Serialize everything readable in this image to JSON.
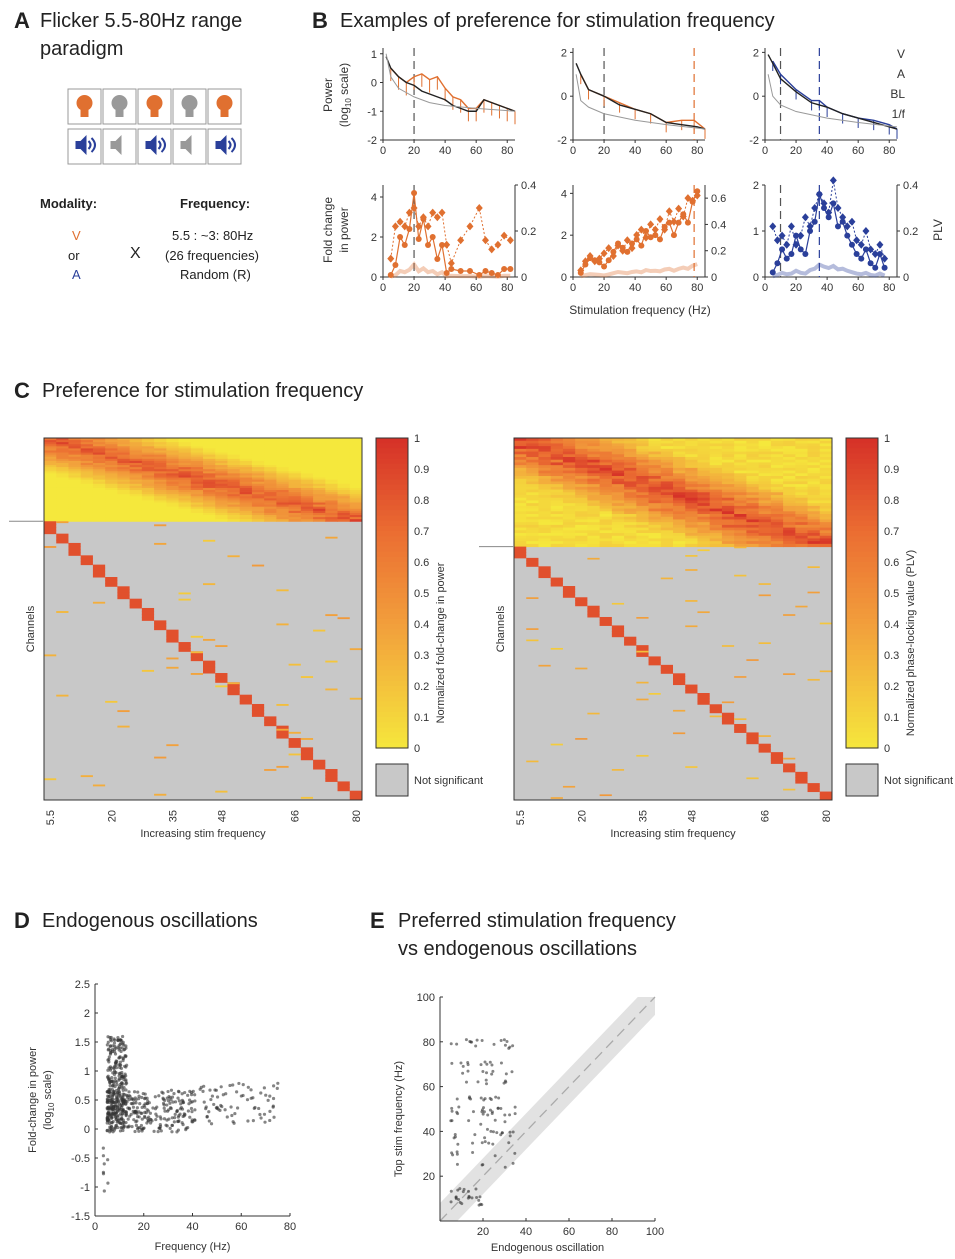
{
  "panelA": {
    "letter": "A",
    "title_line1": "Flicker 5.5-80Hz range",
    "title_line2": "paradigm",
    "modality_header": "Modality:",
    "modality_v": "V",
    "modality_or": "or",
    "modality_a": "A",
    "times": "X",
    "frequency_header": "Frequency:",
    "freq_line1": "5.5 : ~3: 80Hz",
    "freq_line2": "(26 frequencies)",
    "freq_line3": "Random (R)",
    "icons": [
      "bulb-on-icon",
      "bulb-off-icon",
      "bulb-on-icon",
      "bulb-off-icon",
      "bulb-on-icon",
      "speaker-on-icon",
      "speaker-off-icon",
      "speaker-on-icon",
      "speaker-off-icon",
      "speaker-on-icon"
    ]
  },
  "panelB": {
    "letter": "B",
    "title": "Examples of preference for stimulation frequency",
    "top_ylabel1": "Power",
    "top_ylabel2": "(log",
    "top_ylabel_sub": "10",
    "top_ylabel3": " scale)",
    "bottom_ylabel1": "Fold change",
    "bottom_ylabel2": "in power",
    "right_ylabel": "PLV",
    "xlabel": "Stimulation frequency (Hz)",
    "legend": [
      "V",
      "A",
      "BL",
      "1/f"
    ],
    "x_ticks": [
      "0",
      "20",
      "40",
      "60",
      "80"
    ],
    "top_y_ticks_a": [
      "1",
      "0",
      "-1",
      "-2"
    ],
    "top_y_ticks_b": [
      "2",
      "0",
      "-2"
    ],
    "top_y_ticks_c": [
      "2",
      "0",
      "-2"
    ],
    "bot_y_ticks_a": [
      "4",
      "2",
      "0"
    ],
    "bot_y2_ticks_a": [
      "0.4",
      "0.2",
      "0"
    ],
    "bot_y_ticks_b": [
      "4",
      "2",
      "0"
    ],
    "bot_y2_ticks_b": [
      "0.6",
      "0.4",
      "0.2",
      "0"
    ],
    "bot_y_ticks_c": [
      "2",
      "1",
      "0"
    ],
    "bot_y2_ticks_c": [
      "0.4",
      "0.2",
      "0"
    ]
  },
  "panelC": {
    "letter": "C",
    "title": "Preference for stimulation frequency",
    "ylabel": "Channels",
    "xlabel": "Increasing stim frequency",
    "x_ticks": [
      "5.5",
      "20",
      "35",
      "48",
      "66",
      "80"
    ],
    "cbar_ticks": [
      "1",
      "0.9",
      "0.8",
      "0.7",
      "0.6",
      "0.5",
      "0.4",
      "0.3",
      "0.2",
      "0.1",
      "0"
    ],
    "left_cbar_label": "Normalized fold-change in power",
    "right_cbar_label": "Normalized phase-locking value (PLV)",
    "not_significant": "Not significant"
  },
  "panelD": {
    "letter": "D",
    "title": "Endogenous oscillations",
    "ylabel1": "Fold-change in power",
    "ylabel2": "(log",
    "ylabel_sub": "10",
    "ylabel3": " scale)",
    "xlabel": "Frequency (Hz)",
    "x_ticks": [
      "0",
      "20",
      "40",
      "60",
      "80"
    ],
    "y_ticks": [
      "2.5",
      "2",
      "1.5",
      "1",
      "0.5",
      "0",
      "-0.5",
      "-1",
      "-1.5"
    ]
  },
  "panelE": {
    "letter": "E",
    "title_line1": "Preferred stimulation frequency",
    "title_line2": "vs endogenous oscillations",
    "ylabel": "Top stim frequency (Hz)",
    "xlabel": "Endogenous oscillation",
    "x_ticks": [
      "20",
      "40",
      "60",
      "80",
      "100"
    ],
    "y_ticks": [
      "100",
      "80",
      "60",
      "40",
      "20"
    ]
  },
  "colors": {
    "visual": "#e07030",
    "auditory": "#2a3f9a",
    "baseline": "#222222",
    "one_over_f": "#999999",
    "gray": "#cccccc",
    "ylabelE": "#c050b0"
  },
  "chart_data": [
    {
      "type": "line",
      "panel": "B-top-1",
      "xlim": [
        0,
        85
      ],
      "ylim": [
        -2,
        1.2
      ],
      "marker_x": 20,
      "series": [
        {
          "name": "V",
          "x": [
            5,
            10,
            15,
            20,
            25,
            30,
            35,
            40,
            45,
            50,
            55,
            60,
            65,
            70,
            75,
            80,
            85
          ],
          "y": [
            0.5,
            0.2,
            0.0,
            0.2,
            0.3,
            0.1,
            0.2,
            -0.2,
            -0.5,
            -0.6,
            -0.9,
            -0.9,
            -0.6,
            -0.7,
            -0.8,
            -0.9,
            -1.0
          ]
        },
        {
          "name": "BL",
          "x": [
            2,
            5,
            10,
            15,
            20,
            25,
            30,
            35,
            40,
            45,
            50,
            55,
            60,
            65,
            70,
            75,
            80,
            85
          ],
          "y": [
            0.9,
            0.5,
            0.2,
            0.0,
            -0.1,
            -0.3,
            -0.4,
            -0.5,
            -0.6,
            -0.8,
            -0.9,
            -1.0,
            -1.0,
            -0.6,
            -0.7,
            -0.8,
            -0.9,
            -1.0
          ]
        },
        {
          "name": "1/f",
          "x": [
            2,
            5,
            10,
            20,
            30,
            40,
            60,
            85
          ],
          "y": [
            1.0,
            0.2,
            -0.2,
            -0.5,
            -0.7,
            -0.8,
            -0.9,
            -1.0
          ]
        }
      ]
    },
    {
      "type": "line",
      "panel": "B-top-2",
      "xlim": [
        0,
        85
      ],
      "ylim": [
        -2,
        2.2
      ],
      "marker_x": [
        20,
        78
      ],
      "series": [
        {
          "name": "V",
          "x": [
            5,
            10,
            20,
            30,
            40,
            50,
            60,
            70,
            78,
            85
          ],
          "y": [
            1.0,
            0.3,
            0.0,
            -0.3,
            -0.6,
            -0.8,
            -1.2,
            -1.1,
            -1.1,
            -1.5
          ]
        },
        {
          "name": "BL",
          "x": [
            2,
            5,
            10,
            20,
            30,
            40,
            50,
            60,
            70,
            80,
            85
          ],
          "y": [
            1.5,
            1.0,
            0.3,
            0.0,
            -0.4,
            -0.6,
            -0.8,
            -1.2,
            -1.3,
            -1.4,
            -1.5
          ]
        },
        {
          "name": "1/f",
          "x": [
            2,
            5,
            10,
            20,
            40,
            60,
            85
          ],
          "y": [
            1.0,
            -0.2,
            -0.5,
            -0.8,
            -1.1,
            -1.3,
            -1.5
          ]
        }
      ]
    },
    {
      "type": "line",
      "panel": "B-top-3",
      "xlim": [
        0,
        85
      ],
      "ylim": [
        -2,
        2.2
      ],
      "marker_x": [
        10,
        35
      ],
      "series": [
        {
          "name": "A",
          "x": [
            5,
            10,
            20,
            30,
            35,
            40,
            50,
            60,
            70,
            80,
            85
          ],
          "y": [
            1.6,
            1.0,
            0.3,
            -0.2,
            -0.2,
            -0.5,
            -0.8,
            -1.0,
            -1.1,
            -1.3,
            -1.5
          ]
        },
        {
          "name": "BL",
          "x": [
            2,
            5,
            10,
            20,
            30,
            40,
            50,
            60,
            70,
            80,
            85
          ],
          "y": [
            1.9,
            1.5,
            0.8,
            0.2,
            -0.3,
            -0.5,
            -0.8,
            -1.0,
            -1.2,
            -1.4,
            -1.5
          ]
        },
        {
          "name": "1/f",
          "x": [
            2,
            5,
            10,
            20,
            40,
            60,
            85
          ],
          "y": [
            1.0,
            0.0,
            -0.4,
            -0.7,
            -1.0,
            -1.2,
            -1.4
          ]
        }
      ]
    },
    {
      "type": "line",
      "panel": "B-bottom-1",
      "xlim": [
        0,
        85
      ],
      "ylim": [
        0,
        4.6
      ],
      "marker_x": 20,
      "series": [
        {
          "name": "V",
          "x": [
            5,
            8,
            11,
            14,
            17,
            20,
            23,
            26,
            29,
            32,
            35,
            38,
            41,
            44,
            50,
            56,
            62,
            66,
            70,
            74,
            78,
            82
          ],
          "y": [
            0.1,
            0.6,
            2.0,
            1.6,
            2.4,
            4.2,
            1.9,
            2.9,
            1.6,
            2.0,
            0.9,
            1.6,
            0.2,
            0.4,
            0.3,
            0.3,
            0.1,
            0.3,
            0.2,
            0.1,
            0.4,
            0.4
          ]
        },
        {
          "name": "PLV",
          "x": [
            5,
            8,
            11,
            14,
            17,
            20,
            23,
            26,
            29,
            32,
            35,
            38,
            41,
            44,
            50,
            56,
            62,
            66,
            70,
            74,
            78,
            82
          ],
          "y": [
            0.08,
            0.22,
            0.24,
            0.22,
            0.28,
            0.3,
            0.22,
            0.26,
            0.22,
            0.28,
            0.26,
            0.28,
            0.14,
            0.06,
            0.16,
            0.22,
            0.3,
            0.16,
            0.12,
            0.14,
            0.18,
            0.16
          ]
        }
      ]
    },
    {
      "type": "line",
      "panel": "B-bottom-2",
      "xlim": [
        0,
        85
      ],
      "ylim": [
        0,
        4.4
      ],
      "marker_x": 78,
      "series": [
        {
          "name": "V",
          "x": [
            5,
            8,
            11,
            14,
            17,
            20,
            23,
            26,
            29,
            32,
            35,
            38,
            41,
            44,
            47,
            50,
            53,
            56,
            59,
            62,
            65,
            68,
            71,
            74,
            77,
            80
          ],
          "y": [
            0.2,
            0.6,
            0.9,
            0.8,
            0.7,
            0.5,
            0.8,
            1.2,
            1.6,
            1.4,
            1.2,
            1.6,
            1.8,
            1.5,
            2.2,
            1.9,
            2.0,
            1.8,
            2.4,
            2.6,
            2.0,
            2.6,
            3.0,
            2.6,
            3.6,
            4.1
          ]
        },
        {
          "name": "PLV",
          "x": [
            5,
            8,
            11,
            14,
            17,
            20,
            23,
            26,
            29,
            32,
            35,
            38,
            41,
            44,
            47,
            50,
            53,
            56,
            59,
            62,
            65,
            68,
            71,
            74,
            77,
            80
          ],
          "y": [
            0.05,
            0.12,
            0.16,
            0.12,
            0.14,
            0.18,
            0.22,
            0.16,
            0.24,
            0.2,
            0.28,
            0.22,
            0.32,
            0.36,
            0.3,
            0.4,
            0.36,
            0.44,
            0.36,
            0.5,
            0.42,
            0.52,
            0.46,
            0.6,
            0.58,
            0.62
          ]
        }
      ]
    },
    {
      "type": "line",
      "panel": "B-bottom-3",
      "xlim": [
        0,
        85
      ],
      "ylim": [
        0,
        2
      ],
      "marker_x": [
        10,
        35
      ],
      "series": [
        {
          "name": "A",
          "x": [
            5,
            8,
            11,
            14,
            17,
            20,
            23,
            26,
            29,
            32,
            35,
            38,
            41,
            44,
            47,
            50,
            53,
            56,
            59,
            62,
            65,
            68,
            71,
            74,
            77
          ],
          "y": [
            0.1,
            0.3,
            0.6,
            0.4,
            0.5,
            0.9,
            0.6,
            0.5,
            1.0,
            1.2,
            1.8,
            1.5,
            1.3,
            1.6,
            1.1,
            1.2,
            0.9,
            0.7,
            0.5,
            0.4,
            0.6,
            0.3,
            0.2,
            0.5,
            0.2
          ]
        },
        {
          "name": "PLV",
          "x": [
            5,
            8,
            11,
            14,
            17,
            20,
            23,
            26,
            29,
            32,
            35,
            38,
            41,
            44,
            47,
            50,
            53,
            56,
            59,
            62,
            65,
            68,
            71,
            74,
            77
          ],
          "y": [
            0.22,
            0.16,
            0.18,
            0.14,
            0.22,
            0.14,
            0.18,
            0.26,
            0.22,
            0.3,
            0.36,
            0.32,
            0.28,
            0.42,
            0.3,
            0.26,
            0.22,
            0.24,
            0.16,
            0.14,
            0.2,
            0.12,
            0.1,
            0.14,
            0.08
          ]
        }
      ]
    }
  ]
}
